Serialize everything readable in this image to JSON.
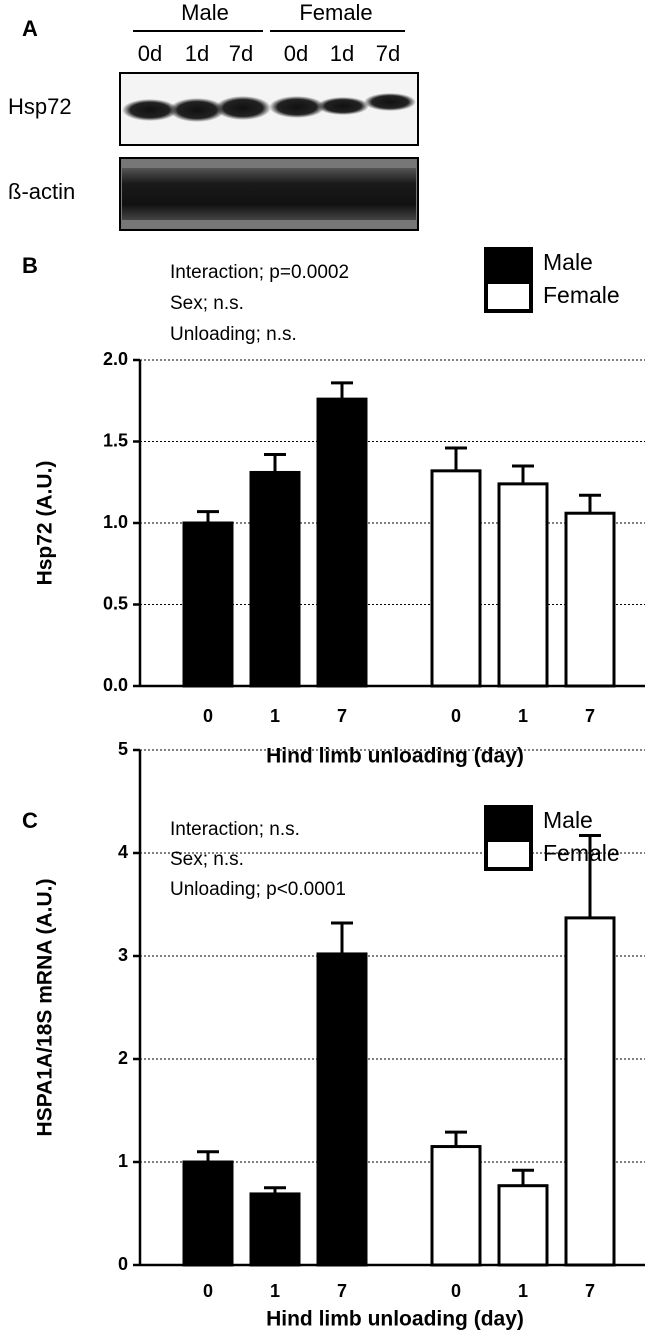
{
  "panel_a": {
    "label": "A",
    "groups": [
      {
        "name": "Male",
        "lanes": [
          "0d",
          "1d",
          "7d"
        ]
      },
      {
        "name": "Female",
        "lanes": [
          "0d",
          "1d",
          "7d"
        ]
      }
    ],
    "rows": [
      "Hsp72",
      "ß-actin"
    ]
  },
  "chart_data": [
    {
      "type": "bar",
      "panel": "B",
      "annotations": [
        "Interaction; p=0.0002",
        "Sex; n.s.",
        "Unloading; n.s."
      ],
      "y_label": "Hsp72 (A.U.)",
      "x_label": "Hind limb unloading (day)",
      "categories": [
        "0",
        "1",
        "7"
      ],
      "series": [
        {
          "name": "Male",
          "color": "#000000",
          "values": [
            1.0,
            1.31,
            1.76
          ],
          "errors": [
            0.07,
            0.11,
            0.1
          ]
        },
        {
          "name": "Female",
          "color": "#ffffff",
          "values": [
            1.32,
            1.24,
            1.06
          ],
          "errors": [
            0.14,
            0.11,
            0.11
          ]
        }
      ],
      "ylim": [
        0,
        2
      ],
      "yticks": [
        {
          "value": 0,
          "label": "0.0"
        },
        {
          "value": 0.5,
          "label": "0.5"
        },
        {
          "value": 1,
          "label": "1.0"
        },
        {
          "value": 1.5,
          "label": "1.5"
        },
        {
          "value": 2,
          "label": "2.0"
        }
      ],
      "grid": true
    },
    {
      "type": "bar",
      "panel": "C",
      "annotations": [
        "Interaction; n.s.",
        "Sex; n.s.",
        "Unloading; p<0.0001"
      ],
      "y_label": "HSPA1A/18S mRNA (A.U.)",
      "x_label": "Hind limb unloading (day)",
      "categories": [
        "0",
        "1",
        "7"
      ],
      "series": [
        {
          "name": "Male",
          "color": "#000000",
          "values": [
            1.0,
            0.69,
            3.02
          ],
          "errors": [
            0.1,
            0.06,
            0.3
          ]
        },
        {
          "name": "Female",
          "color": "#ffffff",
          "values": [
            1.15,
            0.77,
            3.37
          ],
          "errors": [
            0.14,
            0.15,
            0.8
          ]
        }
      ],
      "ylim": [
        0,
        5
      ],
      "yticks": [
        0,
        1,
        2,
        3,
        4,
        5
      ],
      "grid": true
    }
  ]
}
